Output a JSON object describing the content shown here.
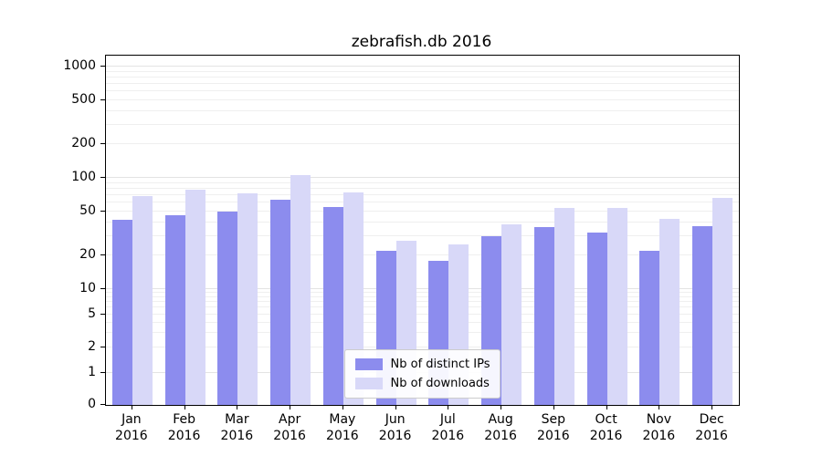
{
  "title": "zebrafish.db 2016",
  "chart_data": {
    "type": "bar",
    "title": "zebrafish.db 2016",
    "categories": [
      "Jan 2016",
      "Feb 2016",
      "Mar 2016",
      "Apr 2016",
      "May 2016",
      "Jun 2016",
      "Jul 2016",
      "Aug 2016",
      "Sep 2016",
      "Oct 2016",
      "Nov 2016",
      "Dec 2016"
    ],
    "series": [
      {
        "name": "Nb of distinct IPs",
        "color": "#8c8cee",
        "values": [
          42,
          46,
          50,
          64,
          55,
          22,
          18,
          30,
          36,
          32,
          22,
          37
        ]
      },
      {
        "name": "Nb of downloads",
        "color": "#d8d8f8",
        "values": [
          68,
          78,
          72,
          105,
          74,
          27,
          25,
          38,
          54,
          54,
          43,
          66
        ]
      }
    ],
    "xlabel": "",
    "ylabel": "",
    "yscale": "symlog",
    "yticks": [
      0,
      1,
      2,
      5,
      10,
      20,
      50,
      100,
      200,
      500,
      1000
    ],
    "ylim": [
      0,
      1200
    ],
    "grid": true,
    "legend_position": "lower center"
  }
}
